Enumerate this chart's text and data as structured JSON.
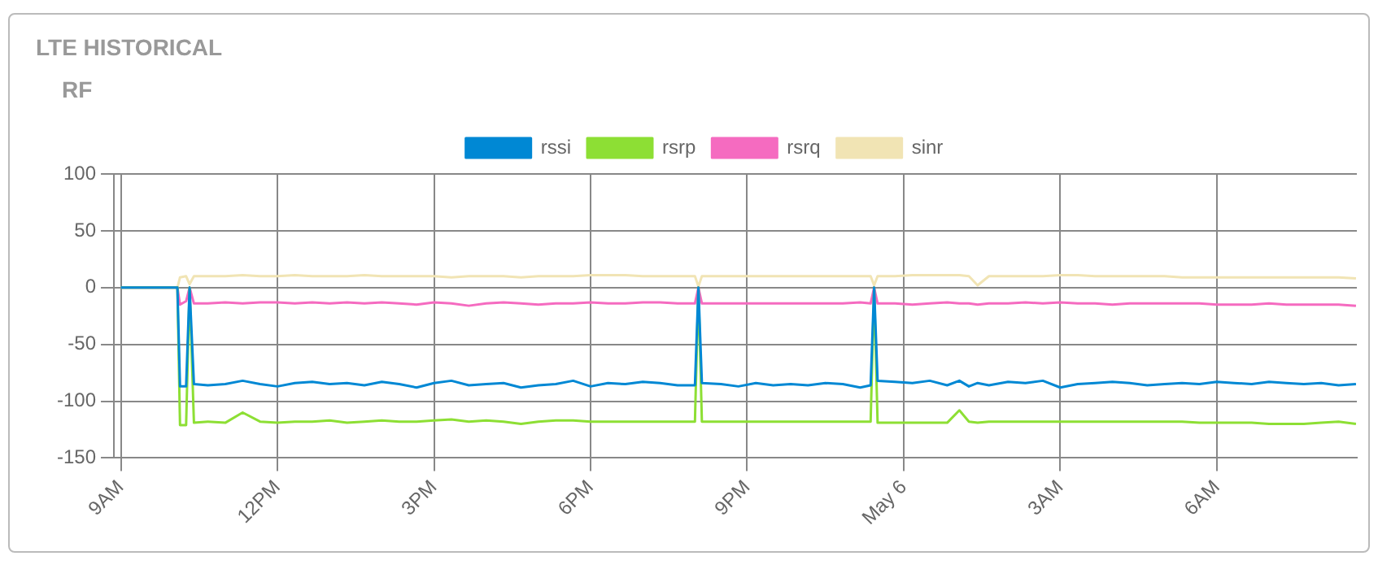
{
  "chart_data": {
    "type": "line",
    "title": "LTE HISTORICAL",
    "subtitle": "RF",
    "x": [
      "--05-05T09:00",
      "--05-05T10:05",
      "--05-05T10:08",
      "--05-05T10:15",
      "--05-05T10:19",
      "--05-05T10:24",
      "--05-05T10:40",
      "--05-05T11:00",
      "--05-05T11:20",
      "--05-05T11:40",
      "--05-05T12:00",
      "--05-05T12:20",
      "--05-05T12:40",
      "--05-05T13:00",
      "--05-05T13:20",
      "--05-05T13:40",
      "--05-05T14:00",
      "--05-05T14:20",
      "--05-05T14:40",
      "--05-05T15:00",
      "--05-05T15:20",
      "--05-05T15:40",
      "--05-05T16:00",
      "--05-05T16:20",
      "--05-05T16:40",
      "--05-05T17:00",
      "--05-05T17:20",
      "--05-05T17:40",
      "--05-05T18:00",
      "--05-05T18:20",
      "--05-05T18:40",
      "--05-05T19:00",
      "--05-05T19:20",
      "--05-05T19:40",
      "--05-05T20:00",
      "--05-05T20:04",
      "--05-05T20:08",
      "--05-05T20:30",
      "--05-05T20:50",
      "--05-05T21:10",
      "--05-05T21:30",
      "--05-05T21:50",
      "--05-05T22:10",
      "--05-05T22:30",
      "--05-05T22:50",
      "--05-05T23:10",
      "--05-05T23:22",
      "--05-05T23:26",
      "--05-05T23:30",
      "--05-05T23:50",
      "--05-06T00:10",
      "--05-06T00:30",
      "--05-06T00:50",
      "--05-06T01:04",
      "--05-06T01:15",
      "--05-06T01:25",
      "--05-06T01:38",
      "--05-06T02:00",
      "--05-06T02:20",
      "--05-06T02:40",
      "--05-06T03:00",
      "--05-06T03:20",
      "--05-06T03:40",
      "--05-06T04:00",
      "--05-06T04:20",
      "--05-06T04:40",
      "--05-06T05:00",
      "--05-06T05:20",
      "--05-06T05:40",
      "--05-06T06:00",
      "--05-06T06:20",
      "--05-06T06:40",
      "--05-06T07:00",
      "--05-06T07:20",
      "--05-06T07:40",
      "--05-06T08:00",
      "--05-06T08:20",
      "--05-06T08:40"
    ],
    "series": [
      {
        "name": "rssi",
        "color": "#0088d4",
        "values": [
          0,
          0,
          -87,
          -87,
          0,
          -85,
          -86,
          -85,
          -82,
          -85,
          -87,
          -84,
          -83,
          -85,
          -84,
          -86,
          -83,
          -85,
          -88,
          -84,
          -82,
          -86,
          -85,
          -84,
          -88,
          -86,
          -85,
          -82,
          -87,
          -84,
          -85,
          -83,
          -84,
          -86,
          -86,
          0,
          -84,
          -85,
          -87,
          -84,
          -86,
          -85,
          -86,
          -84,
          -85,
          -88,
          -86,
          0,
          -82,
          -83,
          -84,
          -82,
          -86,
          -82,
          -87,
          -84,
          -86,
          -83,
          -84,
          -82,
          -88,
          -85,
          -84,
          -83,
          -84,
          -86,
          -85,
          -84,
          -85,
          -83,
          -84,
          -85,
          -83,
          -84,
          -85,
          -84,
          -86,
          -85
        ]
      },
      {
        "name": "rsrp",
        "color": "#8ddf34",
        "values": [
          0,
          0,
          -121,
          -121,
          0,
          -119,
          -118,
          -119,
          -110,
          -118,
          -119,
          -118,
          -118,
          -117,
          -119,
          -118,
          -117,
          -118,
          -118,
          -117,
          -116,
          -118,
          -117,
          -118,
          -120,
          -118,
          -117,
          -117,
          -118,
          -118,
          -118,
          -118,
          -118,
          -118,
          -118,
          0,
          -118,
          -118,
          -118,
          -118,
          -118,
          -118,
          -118,
          -118,
          -118,
          -118,
          -118,
          0,
          -119,
          -119,
          -119,
          -119,
          -119,
          -108,
          -118,
          -119,
          -118,
          -118,
          -118,
          -118,
          -118,
          -118,
          -118,
          -118,
          -118,
          -118,
          -118,
          -118,
          -119,
          -119,
          -119,
          -119,
          -120,
          -120,
          -120,
          -119,
          -118,
          -120
        ]
      },
      {
        "name": "rsrq",
        "color": "#f56bc0",
        "values": [
          0,
          0,
          -15,
          -12,
          0,
          -14,
          -14,
          -13,
          -14,
          -13,
          -13,
          -14,
          -13,
          -14,
          -13,
          -14,
          -13,
          -14,
          -15,
          -13,
          -14,
          -16,
          -14,
          -13,
          -14,
          -15,
          -14,
          -14,
          -13,
          -14,
          -14,
          -13,
          -13,
          -14,
          -14,
          0,
          -14,
          -14,
          -14,
          -14,
          -14,
          -14,
          -14,
          -14,
          -14,
          -13,
          -14,
          0,
          -14,
          -14,
          -15,
          -14,
          -13,
          -14,
          -14,
          -15,
          -14,
          -14,
          -13,
          -14,
          -13,
          -14,
          -14,
          -15,
          -14,
          -14,
          -14,
          -14,
          -14,
          -15,
          -15,
          -15,
          -14,
          -15,
          -15,
          -15,
          -15,
          -16
        ]
      },
      {
        "name": "sinr",
        "color": "#f1e4b4",
        "values": [
          0,
          0,
          9,
          10,
          3,
          10,
          10,
          10,
          11,
          10,
          10,
          11,
          10,
          10,
          10,
          11,
          10,
          10,
          10,
          10,
          9,
          10,
          10,
          10,
          9,
          10,
          10,
          10,
          11,
          11,
          11,
          10,
          10,
          10,
          10,
          1,
          10,
          10,
          10,
          10,
          10,
          10,
          10,
          10,
          10,
          10,
          10,
          2,
          10,
          10,
          11,
          11,
          11,
          11,
          10,
          2,
          10,
          10,
          10,
          10,
          11,
          11,
          10,
          10,
          10,
          10,
          10,
          9,
          9,
          9,
          9,
          9,
          9,
          9,
          9,
          9,
          9,
          8
        ]
      }
    ],
    "xlim": [
      "--05-05T08:52",
      "--05-06T08:41"
    ],
    "xticks": [
      {
        "value": "--05-05T09:00",
        "label": "9AM"
      },
      {
        "value": "--05-05T12:00",
        "label": "12PM"
      },
      {
        "value": "--05-05T15:00",
        "label": "3PM"
      },
      {
        "value": "--05-05T18:00",
        "label": "6PM"
      },
      {
        "value": "--05-05T21:00",
        "label": "9PM"
      },
      {
        "value": "--05-06T00:00",
        "label": "May 6"
      },
      {
        "value": "--05-06T03:00",
        "label": "3AM"
      },
      {
        "value": "--05-06T06:00",
        "label": "6AM"
      }
    ],
    "ylim": [
      -150,
      100
    ],
    "yticks": [
      -150,
      -100,
      -50,
      0,
      50,
      100
    ],
    "grid": true,
    "legend": "top",
    "marker": "none",
    "line_style": "solid"
  }
}
